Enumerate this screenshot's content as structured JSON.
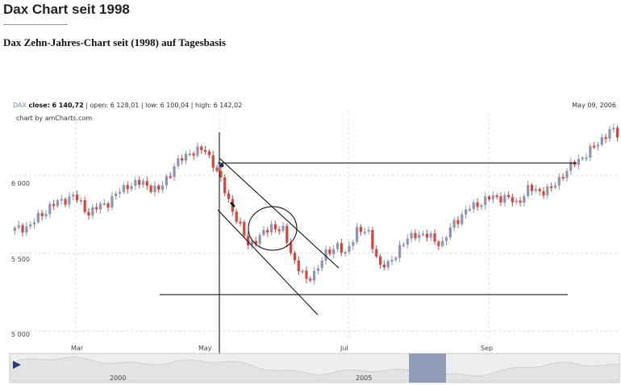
{
  "page": {
    "title": "Dax Chart seit 1998",
    "subtitle": "Dax Zehn-Jahres-Chart seit (1998) auf Tagesbasis"
  },
  "quote": {
    "symbol": "DAX",
    "close_label": "close:",
    "close": "6 140,72",
    "open_label": "open:",
    "open": "6 128,01",
    "low_label": "low:",
    "low": "6 100,04",
    "high_label": "high:",
    "high": "6 142,02",
    "date": "May 09, 2006",
    "credit": "chart by amCharts.com"
  },
  "colors": {
    "up": "#8d95b3",
    "down": "#d9433a",
    "grid": "#dedede",
    "navigator_fill": "#e3e3e3",
    "navigator_selection": "#8c97b5",
    "annotation": "#000000"
  },
  "chart_data": {
    "type": "candlestick",
    "x_ticks": [
      "Mar",
      "May",
      "Jul",
      "Sep"
    ],
    "y_ticks": [
      "6 000",
      "5 500",
      "5 000"
    ],
    "ylim": [
      4950,
      6400
    ],
    "grid": true,
    "anchors": [
      {
        "t": 0,
        "v": 5650
      },
      {
        "t": 4,
        "v": 5680
      },
      {
        "t": 9,
        "v": 5800
      },
      {
        "t": 15,
        "v": 5870
      },
      {
        "t": 19,
        "v": 5760
      },
      {
        "t": 24,
        "v": 5830
      },
      {
        "t": 29,
        "v": 5940
      },
      {
        "t": 33,
        "v": 5950
      },
      {
        "t": 37,
        "v": 5900
      },
      {
        "t": 41,
        "v": 6060
      },
      {
        "t": 45,
        "v": 6150
      },
      {
        "t": 49,
        "v": 6160
      },
      {
        "t": 51,
        "v": 6080
      },
      {
        "t": 54,
        "v": 5900
      },
      {
        "t": 57,
        "v": 5720
      },
      {
        "t": 60,
        "v": 5560
      },
      {
        "t": 63,
        "v": 5600
      },
      {
        "t": 66,
        "v": 5680
      },
      {
        "t": 69,
        "v": 5640
      },
      {
        "t": 72,
        "v": 5450
      },
      {
        "t": 75,
        "v": 5320
      },
      {
        "t": 77,
        "v": 5380
      },
      {
        "t": 80,
        "v": 5490
      },
      {
        "t": 83,
        "v": 5560
      },
      {
        "t": 85,
        "v": 5480
      },
      {
        "t": 88,
        "v": 5660
      },
      {
        "t": 91,
        "v": 5620
      },
      {
        "t": 94,
        "v": 5420
      },
      {
        "t": 96,
        "v": 5420
      },
      {
        "t": 99,
        "v": 5540
      },
      {
        "t": 103,
        "v": 5630
      },
      {
        "t": 107,
        "v": 5600
      },
      {
        "t": 110,
        "v": 5560
      },
      {
        "t": 113,
        "v": 5700
      },
      {
        "t": 117,
        "v": 5790
      },
      {
        "t": 120,
        "v": 5830
      },
      {
        "t": 123,
        "v": 5860
      },
      {
        "t": 126,
        "v": 5860
      },
      {
        "t": 129,
        "v": 5820
      },
      {
        "t": 132,
        "v": 5910
      },
      {
        "t": 135,
        "v": 5900
      },
      {
        "t": 138,
        "v": 5910
      },
      {
        "t": 141,
        "v": 6010
      },
      {
        "t": 145,
        "v": 6100
      },
      {
        "t": 149,
        "v": 6180
      },
      {
        "t": 153,
        "v": 6290
      },
      {
        "t": 155,
        "v": 6260
      }
    ],
    "navigator": {
      "labels": [
        "2000",
        "2005"
      ]
    }
  }
}
